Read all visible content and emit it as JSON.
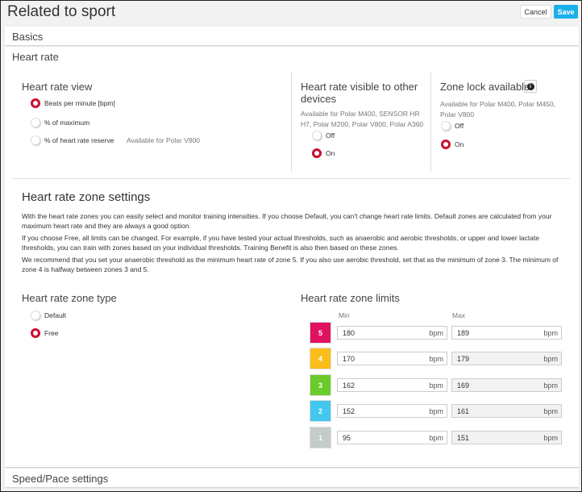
{
  "header": {
    "title": "Related to sport",
    "cancel": "Cancel",
    "save": "Save"
  },
  "colors": {
    "accent": "#1ab0e8",
    "radio_selected": "#c8102e"
  },
  "sections": {
    "basics": "Basics",
    "heart_rate": "Heart rate",
    "speed_pace": "Speed/Pace settings"
  },
  "hr_view": {
    "title": "Heart rate view",
    "options": [
      {
        "label": "Beats per minute [bpm]",
        "selected": true
      },
      {
        "label": "% of maximum",
        "selected": false
      },
      {
        "label": "% of heart rate reserve",
        "selected": false,
        "note": "Available for Polar V800"
      }
    ]
  },
  "hr_visible": {
    "title": "Heart rate visible to other devices",
    "note": "Available for Polar M400, SENSOR HR H7, Polar M200, Polar V800, Polar A360",
    "off": "Off",
    "on": "On",
    "value": "On"
  },
  "zone_lock": {
    "title": "Zone lock available",
    "icon": "info-icon",
    "note": "Available for Polar M400, Polar M450, Polar V800",
    "off": "Off",
    "on": "On",
    "value": "On"
  },
  "zone_settings": {
    "title": "Heart rate zone settings",
    "paragraphs": [
      "With the heart rate zones you can easily select and monitor training intensities. If you choose Default, you can't change heart rate limits. Default zones are calculated from your maximum heart rate and they are always a good option.",
      "If you choose Free, all limits can be changed. For example, if you have tested your actual thresholds, such as anaerobic and aerobic thresholds, or upper and lower lactate thresholds, you can train with zones based on your individual thresholds. Training Benefit is also then based on these zones.",
      "We recommend that you set your anaerobic threshold as the minimum heart rate of zone 5. If you also use aerobic threshold, set that as the minimum of zone 3. The minimum of zone 4 is halfway between zones 3 and 5."
    ]
  },
  "zone_type": {
    "title": "Heart rate zone type",
    "default": "Default",
    "free": "Free",
    "value": "Free"
  },
  "zone_limits": {
    "title": "Heart rate zone limits",
    "min_label": "Min",
    "max_label": "Max",
    "unit": "bpm",
    "zones": [
      {
        "zone": "5",
        "color": "#e0115f",
        "min": "180",
        "max": "189",
        "max_editable": true
      },
      {
        "zone": "4",
        "color": "#fbbd1c",
        "min": "170",
        "max": "179",
        "max_editable": false
      },
      {
        "zone": "3",
        "color": "#6acb2a",
        "min": "162",
        "max": "169",
        "max_editable": false
      },
      {
        "zone": "2",
        "color": "#42c7ee",
        "min": "152",
        "max": "161",
        "max_editable": false
      },
      {
        "zone": "1",
        "color": "#c3cbcb",
        "min": "95",
        "max": "151",
        "max_editable": false
      }
    ]
  }
}
